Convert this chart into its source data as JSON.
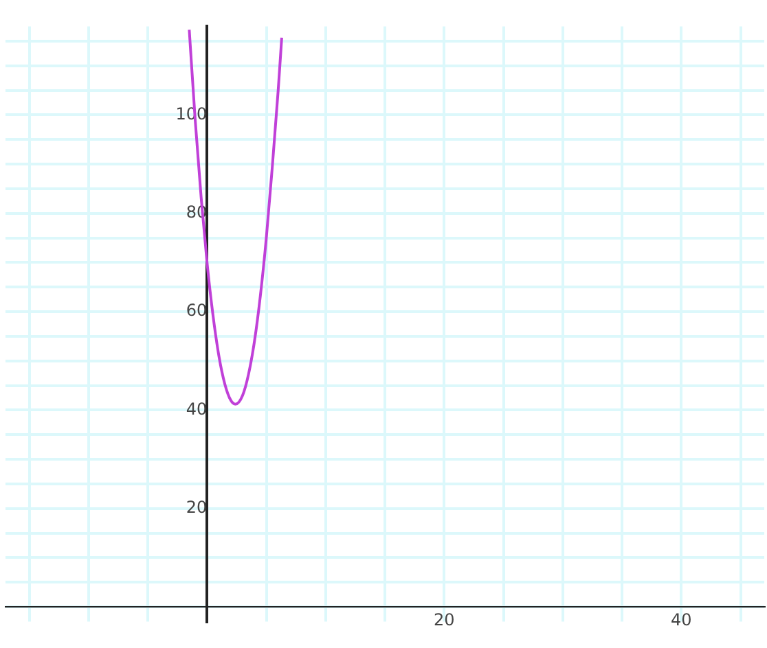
{
  "chart_data": {
    "type": "line",
    "x": [
      -1.5,
      -1,
      -0.5,
      0,
      0.5,
      1,
      1.5,
      2,
      2.4,
      3,
      3.5,
      4,
      4.5,
      5,
      5.5,
      6,
      6.3
    ],
    "series": [
      {
        "color": "#c040d8",
        "values": [
          117.3,
          99,
          83.3,
          70,
          59.3,
          51,
          45.3,
          42,
          41.2,
          43,
          47.3,
          54,
          63.3,
          75,
          89.3,
          105,
          115.7
        ]
      }
    ],
    "xlim": [
      -17,
      47
    ],
    "ylim": [
      -3,
      118
    ],
    "xticks": [
      {
        "value": -15,
        "label": null
      },
      {
        "value": -10,
        "label": null
      },
      {
        "value": -5,
        "label": null
      },
      {
        "value": 0,
        "label": null
      },
      {
        "value": 5,
        "label": null
      },
      {
        "value": 10,
        "label": null
      },
      {
        "value": 15,
        "label": null
      },
      20,
      {
        "value": 25,
        "label": null
      },
      {
        "value": 30,
        "label": null
      },
      {
        "value": 35,
        "label": null
      },
      40,
      {
        "value": 45,
        "label": null
      }
    ],
    "yticks": [
      {
        "value": 0,
        "label": null
      },
      {
        "value": 5,
        "label": null
      },
      {
        "value": 10,
        "label": null
      },
      {
        "value": 15,
        "label": null
      },
      20,
      {
        "value": 25,
        "label": null
      },
      {
        "value": 30,
        "label": null
      },
      {
        "value": 35,
        "label": null
      },
      40,
      {
        "value": 45,
        "label": null
      },
      {
        "value": 50,
        "label": null
      },
      {
        "value": 55,
        "label": null
      },
      60,
      {
        "value": 65,
        "label": null
      },
      {
        "value": 70,
        "label": null
      },
      {
        "value": 75,
        "label": null
      },
      80,
      {
        "value": 85,
        "label": null
      },
      {
        "value": 90,
        "label": null
      },
      {
        "value": 95,
        "label": null
      },
      100,
      {
        "value": 105,
        "label": null
      },
      {
        "value": 110,
        "label": null
      },
      {
        "value": 115,
        "label": null
      }
    ],
    "grid": true,
    "legend": false,
    "marker": "none",
    "line_style": "solid"
  }
}
